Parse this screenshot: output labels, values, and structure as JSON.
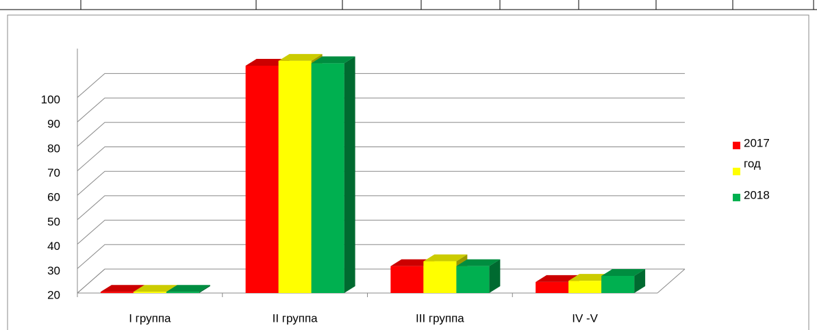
{
  "chart_data": {
    "type": "bar3d",
    "categories": [
      "I группа",
      "II группа",
      "III группа",
      "IV -V"
    ],
    "series": [
      {
        "name": "2017",
        "color": "#ff0000",
        "values": [
          20.5,
          113,
          31,
          24.5
        ]
      },
      {
        "name": "год",
        "color": "#ffff00",
        "values": [
          20.5,
          115,
          33,
          25
        ]
      },
      {
        "name": "2018",
        "color": "#00b050",
        "values": [
          20.5,
          114,
          31,
          27
        ]
      }
    ],
    "ylim": [
      20,
      120
    ],
    "yticks": [
      20,
      30,
      40,
      50,
      60,
      70,
      80,
      90,
      100
    ],
    "grid": true,
    "legend": "right"
  }
}
